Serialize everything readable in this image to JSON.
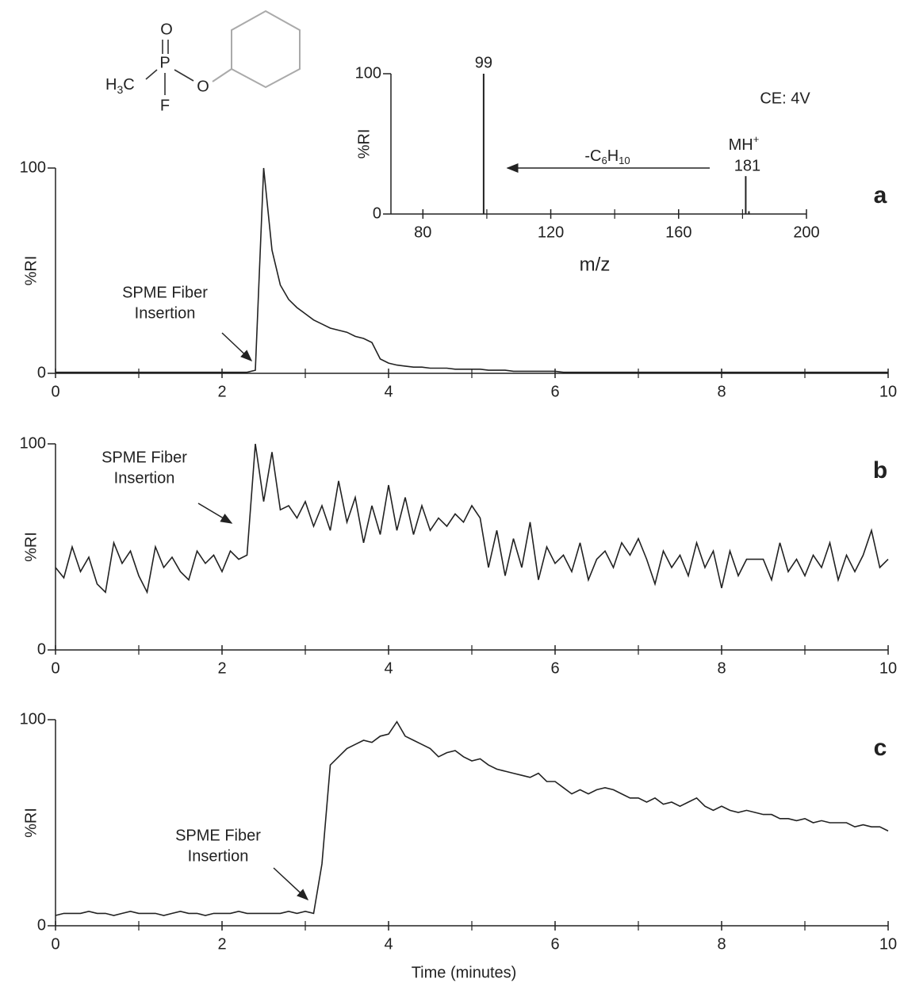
{
  "structure": {
    "atoms": [
      "O",
      "P",
      "O",
      "F"
    ],
    "methyl": [
      "H",
      "3",
      "C"
    ]
  },
  "chart_data": [
    {
      "type": "line",
      "panel": "a",
      "ylabel": "%RI",
      "annotation": [
        "SPME Fiber",
        "Insertion"
      ],
      "xlim": [
        0,
        10
      ],
      "xticks": [
        0,
        2,
        4,
        6,
        8,
        10
      ],
      "xminor": [
        1,
        3,
        5,
        7,
        9
      ],
      "ylim": [
        0,
        100
      ],
      "yticks": [
        0,
        100
      ],
      "color": "#222222",
      "x": [
        0,
        0.1,
        0.2,
        0.3,
        0.4,
        0.5,
        0.6,
        0.7,
        0.8,
        0.9,
        1,
        1.1,
        1.2,
        1.3,
        1.4,
        1.5,
        1.6,
        1.7,
        1.8,
        1.9,
        2,
        2.1,
        2.2,
        2.3,
        2.4,
        2.5,
        2.6,
        2.7,
        2.8,
        2.9,
        3,
        3.1,
        3.2,
        3.3,
        3.4,
        3.5,
        3.6,
        3.7,
        3.8,
        3.9,
        4,
        4.1,
        4.2,
        4.3,
        4.4,
        4.5,
        4.6,
        4.7,
        4.8,
        4.9,
        5,
        5.1,
        5.2,
        5.3,
        5.4,
        5.5,
        5.6,
        5.7,
        5.8,
        5.9,
        6,
        6.1,
        6.2,
        6.3,
        6.4,
        6.5,
        6.6,
        6.7,
        6.8,
        6.9,
        7,
        7.1,
        7.2,
        7.3,
        7.4,
        7.5,
        7.6,
        7.7,
        7.8,
        7.9,
        8,
        8.1,
        8.2,
        8.3,
        8.4,
        8.5,
        8.6,
        8.7,
        8.8,
        8.9,
        9,
        9.1,
        9.2,
        9.3,
        9.4,
        9.5,
        9.6,
        9.7,
        9.8,
        9.9,
        10
      ],
      "values": [
        0.5,
        0.5,
        0.5,
        0.5,
        0.5,
        0.5,
        0.5,
        0.5,
        0.5,
        0.5,
        0.5,
        0.5,
        0.5,
        0.5,
        0.5,
        0.5,
        0.5,
        0.5,
        0.5,
        0.5,
        0.5,
        0.5,
        0.5,
        0.5,
        1.5,
        100,
        60,
        43,
        36,
        32,
        29,
        26,
        24,
        22,
        21,
        20,
        18,
        17,
        15,
        7,
        5,
        4,
        3.5,
        3,
        3,
        2.5,
        2.5,
        2.5,
        2,
        2,
        2,
        2,
        1.5,
        1.5,
        1.5,
        1,
        1,
        1,
        1,
        1,
        1,
        0.5,
        0.5,
        0.5,
        0.5,
        0.5,
        0.5,
        0.5,
        0.5,
        0.5,
        0.5,
        0.5,
        0.5,
        0.5,
        0.5,
        0.5,
        0.5,
        0.5,
        0.5,
        0.5,
        0.5,
        0.5,
        0.5,
        0.5,
        0.5,
        0.5,
        0.5,
        0.5,
        0.5,
        0.5,
        0.5,
        0.5,
        0.5,
        0.5,
        0.5,
        0.5,
        0.5,
        0.5,
        0.5,
        0.5,
        0.5
      ]
    },
    {
      "type": "line",
      "panel": "b",
      "ylabel": "%RI",
      "annotation": [
        "SPME Fiber",
        "Insertion"
      ],
      "xlim": [
        0,
        10
      ],
      "xticks": [
        0,
        2,
        4,
        6,
        8,
        10
      ],
      "xminor": [
        1,
        3,
        5,
        7,
        9
      ],
      "ylim": [
        0,
        100
      ],
      "yticks": [
        0,
        100
      ],
      "color": "#222222",
      "x": [
        0,
        0.1,
        0.2,
        0.3,
        0.4,
        0.5,
        0.6,
        0.7,
        0.8,
        0.9,
        1,
        1.1,
        1.2,
        1.3,
        1.4,
        1.5,
        1.6,
        1.7,
        1.8,
        1.9,
        2,
        2.1,
        2.2,
        2.3,
        2.4,
        2.5,
        2.6,
        2.7,
        2.8,
        2.9,
        3,
        3.1,
        3.2,
        3.3,
        3.4,
        3.5,
        3.6,
        3.7,
        3.8,
        3.9,
        4,
        4.1,
        4.2,
        4.3,
        4.4,
        4.5,
        4.6,
        4.7,
        4.8,
        4.9,
        5,
        5.1,
        5.2,
        5.3,
        5.4,
        5.5,
        5.6,
        5.7,
        5.8,
        5.9,
        6,
        6.1,
        6.2,
        6.3,
        6.4,
        6.5,
        6.6,
        6.7,
        6.8,
        6.9,
        7,
        7.1,
        7.2,
        7.3,
        7.4,
        7.5,
        7.6,
        7.7,
        7.8,
        7.9,
        8,
        8.1,
        8.2,
        8.3,
        8.4,
        8.5,
        8.6,
        8.7,
        8.8,
        8.9,
        9,
        9.1,
        9.2,
        9.3,
        9.4,
        9.5,
        9.6,
        9.7,
        9.8,
        9.9,
        10
      ],
      "values": [
        40,
        35,
        50,
        38,
        45,
        32,
        28,
        52,
        42,
        48,
        36,
        28,
        50,
        40,
        45,
        38,
        34,
        48,
        42,
        46,
        38,
        48,
        44,
        46,
        100,
        72,
        96,
        68,
        70,
        64,
        72,
        60,
        70,
        58,
        82,
        62,
        74,
        52,
        70,
        56,
        80,
        58,
        74,
        56,
        70,
        58,
        64,
        60,
        66,
        62,
        70,
        64,
        40,
        58,
        36,
        54,
        40,
        62,
        34,
        50,
        42,
        46,
        38,
        52,
        34,
        44,
        48,
        40,
        52,
        46,
        54,
        44,
        32,
        48,
        40,
        46,
        36,
        52,
        40,
        48,
        30,
        48,
        36,
        44,
        44,
        44,
        34,
        52,
        38,
        44,
        36,
        46,
        40,
        52,
        34,
        46,
        38,
        46,
        58,
        40,
        44
      ]
    },
    {
      "type": "line",
      "panel": "c",
      "ylabel": "%RI",
      "xlabel": "Time (minutes)",
      "annotation": [
        "SPME Fiber",
        "Insertion"
      ],
      "xlim": [
        0,
        10
      ],
      "xticks": [
        0,
        2,
        4,
        6,
        8,
        10
      ],
      "xminor": [
        1,
        3,
        5,
        7,
        9
      ],
      "ylim": [
        0,
        100
      ],
      "yticks": [
        0,
        100
      ],
      "color": "#222222",
      "x": [
        0,
        0.1,
        0.2,
        0.3,
        0.4,
        0.5,
        0.6,
        0.7,
        0.8,
        0.9,
        1,
        1.1,
        1.2,
        1.3,
        1.4,
        1.5,
        1.6,
        1.7,
        1.8,
        1.9,
        2,
        2.1,
        2.2,
        2.3,
        2.4,
        2.5,
        2.6,
        2.7,
        2.8,
        2.9,
        3,
        3.1,
        3.2,
        3.3,
        3.4,
        3.5,
        3.6,
        3.7,
        3.8,
        3.9,
        4,
        4.1,
        4.2,
        4.3,
        4.4,
        4.5,
        4.6,
        4.7,
        4.8,
        4.9,
        5,
        5.1,
        5.2,
        5.3,
        5.4,
        5.5,
        5.6,
        5.7,
        5.8,
        5.9,
        6,
        6.1,
        6.2,
        6.3,
        6.4,
        6.5,
        6.6,
        6.7,
        6.8,
        6.9,
        7,
        7.1,
        7.2,
        7.3,
        7.4,
        7.5,
        7.6,
        7.7,
        7.8,
        7.9,
        8,
        8.1,
        8.2,
        8.3,
        8.4,
        8.5,
        8.6,
        8.7,
        8.8,
        8.9,
        9,
        9.1,
        9.2,
        9.3,
        9.4,
        9.5,
        9.6,
        9.7,
        9.8,
        9.9,
        10
      ],
      "values": [
        5,
        6,
        6,
        6,
        7,
        6,
        6,
        5,
        6,
        7,
        6,
        6,
        6,
        5,
        6,
        7,
        6,
        6,
        5,
        6,
        6,
        6,
        7,
        6,
        6,
        6,
        6,
        6,
        7,
        6,
        7,
        6,
        30,
        78,
        82,
        86,
        88,
        90,
        89,
        92,
        93,
        99,
        92,
        90,
        88,
        86,
        82,
        84,
        85,
        82,
        80,
        81,
        78,
        76,
        75,
        74,
        73,
        72,
        74,
        70,
        70,
        67,
        64,
        66,
        64,
        66,
        67,
        66,
        64,
        62,
        62,
        60,
        62,
        59,
        60,
        58,
        60,
        62,
        58,
        56,
        58,
        56,
        55,
        56,
        55,
        54,
        54,
        52,
        52,
        51,
        52,
        50,
        51,
        50,
        50,
        50,
        48,
        49,
        48,
        48,
        46
      ]
    },
    {
      "type": "stem",
      "ylabel": "%RI",
      "xlabel": "m/z",
      "collision_energy": "CE: 4V",
      "ion": [
        "MH",
        "+"
      ],
      "loss": [
        "-C",
        "6",
        "H",
        "10"
      ],
      "xlim": [
        70,
        200
      ],
      "xticks": [
        80,
        120,
        160,
        200
      ],
      "xminor": [
        100,
        140,
        180
      ],
      "ylim": [
        0,
        100
      ],
      "yticks": [
        0,
        100
      ],
      "color": "#222222",
      "x": [
        99,
        181,
        182
      ],
      "values": [
        100,
        27,
        2
      ]
    }
  ]
}
